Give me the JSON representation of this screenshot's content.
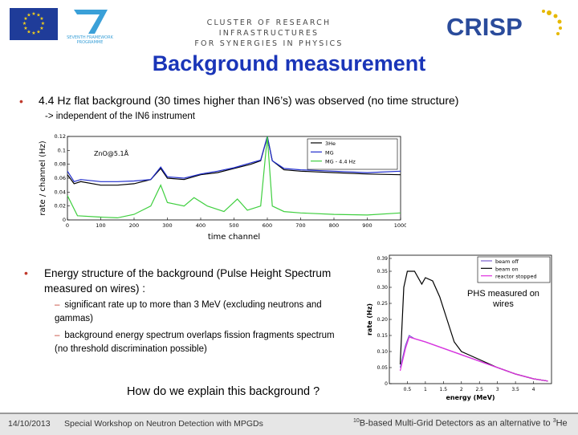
{
  "header": {
    "cluster_line1": "CLUSTER OF RESEARCH INFRASTRUCTURES",
    "cluster_line2": "FOR SYNERGIES IN PHYSICS",
    "crisp": "CRISP",
    "fp7_text1": "SEVENTH FRAMEWORK",
    "fp7_text2": "PROGRAMME"
  },
  "title": "Background measurement",
  "bullet1": {
    "text": "4.4 Hz flat background (30 times higher than IN6’s) was observed (no time structure)",
    "subtext": "-> independent of the IN6 instrument"
  },
  "bullet2": {
    "text": "Energy structure of the background (Pulse Height Spectrum measured on wires) :",
    "sub1": "significant rate up to more than 3 MeV (excluding neutrons and gammas)",
    "sub2": "background energy spectrum overlaps fission fragments spectrum (no threshold discrimination possible)"
  },
  "question": "How do we explain this background ?",
  "phs_note": "PHS measured on wires",
  "footer": {
    "date": "14/10/2013",
    "workshop": "Special Workshop on Neutron Detection with MPGDs",
    "sup1": "10",
    "right_main": "B-based Multi-Grid Detectors as an alternative to ",
    "sup2": "3",
    "right_end": "He"
  },
  "chart_data": [
    {
      "type": "line",
      "annotation": "ZnO@5.1Å",
      "xlabel": "time channel",
      "ylabel": "rate / channel (Hz)",
      "xlim": [
        0,
        1000
      ],
      "ylim": [
        0,
        0.12
      ],
      "x_ticks": [
        "0",
        "100",
        "200",
        "300",
        "400",
        "500",
        "600",
        "700",
        "800",
        "900",
        "1000"
      ],
      "y_ticks": [
        "0",
        "0.02",
        "0.04",
        "0.06",
        "0.08",
        "0.1",
        "0.12"
      ],
      "legend_placement": "top-right",
      "series": [
        {
          "name": "3He",
          "color": "#000000",
          "values": [
            [
              0,
              0.065
            ],
            [
              20,
              0.052
            ],
            [
              40,
              0.055
            ],
            [
              100,
              0.05
            ],
            [
              150,
              0.05
            ],
            [
              200,
              0.052
            ],
            [
              250,
              0.058
            ],
            [
              280,
              0.074
            ],
            [
              300,
              0.06
            ],
            [
              350,
              0.058
            ],
            [
              400,
              0.065
            ],
            [
              450,
              0.068
            ],
            [
              500,
              0.074
            ],
            [
              550,
              0.08
            ],
            [
              580,
              0.085
            ],
            [
              600,
              0.12
            ],
            [
              615,
              0.085
            ],
            [
              650,
              0.072
            ],
            [
              700,
              0.07
            ],
            [
              800,
              0.068
            ],
            [
              900,
              0.066
            ],
            [
              1000,
              0.065
            ]
          ]
        },
        {
          "name": "MG",
          "color": "#1f2ccc",
          "values": [
            [
              0,
              0.07
            ],
            [
              20,
              0.055
            ],
            [
              40,
              0.058
            ],
            [
              100,
              0.055
            ],
            [
              150,
              0.055
            ],
            [
              200,
              0.056
            ],
            [
              250,
              0.058
            ],
            [
              280,
              0.076
            ],
            [
              300,
              0.062
            ],
            [
              350,
              0.06
            ],
            [
              400,
              0.066
            ],
            [
              450,
              0.07
            ],
            [
              500,
              0.075
            ],
            [
              550,
              0.082
            ],
            [
              580,
              0.086
            ],
            [
              600,
              0.12
            ],
            [
              615,
              0.085
            ],
            [
              650,
              0.074
            ],
            [
              700,
              0.072
            ],
            [
              800,
              0.07
            ],
            [
              900,
              0.068
            ],
            [
              1000,
              0.07
            ]
          ]
        },
        {
          "name": "MG - 4.4 Hz",
          "color": "#3fcf3f",
          "values": [
            [
              0,
              0.035
            ],
            [
              30,
              0.006
            ],
            [
              100,
              0.004
            ],
            [
              150,
              0.003
            ],
            [
              200,
              0.008
            ],
            [
              250,
              0.02
            ],
            [
              280,
              0.05
            ],
            [
              300,
              0.025
            ],
            [
              350,
              0.02
            ],
            [
              380,
              0.032
            ],
            [
              420,
              0.02
            ],
            [
              470,
              0.012
            ],
            [
              510,
              0.03
            ],
            [
              540,
              0.014
            ],
            [
              580,
              0.02
            ],
            [
              600,
              0.12
            ],
            [
              615,
              0.02
            ],
            [
              650,
              0.012
            ],
            [
              700,
              0.01
            ],
            [
              800,
              0.008
            ],
            [
              900,
              0.007
            ],
            [
              1000,
              0.01
            ]
          ]
        }
      ]
    },
    {
      "type": "line",
      "xlabel": "energy (MeV)",
      "ylabel": "rate (Hz)",
      "xlim": [
        0,
        4.5
      ],
      "ylim": [
        0,
        0.4
      ],
      "x_ticks": [
        "0.5",
        "1",
        "1.5",
        "2",
        "2.5",
        "3",
        "3.5",
        "4"
      ],
      "y_ticks": [
        "0",
        "0.05",
        "0.10",
        "0.15",
        "0.20",
        "0.25",
        "0.30",
        "0.35",
        "0.39"
      ],
      "legend_placement": "top-right",
      "series": [
        {
          "name": "beam off",
          "color": "#7a5fcf",
          "values": [
            [
              0.3,
              0.05
            ],
            [
              0.45,
              0.12
            ],
            [
              0.55,
              0.15
            ],
            [
              0.7,
              0.14
            ],
            [
              1.0,
              0.13
            ],
            [
              1.5,
              0.11
            ],
            [
              2.0,
              0.09
            ],
            [
              2.5,
              0.07
            ],
            [
              3.0,
              0.05
            ],
            [
              3.5,
              0.03
            ],
            [
              4.0,
              0.015
            ],
            [
              4.4,
              0.008
            ]
          ]
        },
        {
          "name": "beam on",
          "color": "#000000",
          "values": [
            [
              0.3,
              0.06
            ],
            [
              0.4,
              0.3
            ],
            [
              0.5,
              0.35
            ],
            [
              0.7,
              0.35
            ],
            [
              0.9,
              0.31
            ],
            [
              1.0,
              0.33
            ],
            [
              1.2,
              0.32
            ],
            [
              1.4,
              0.27
            ],
            [
              1.6,
              0.2
            ],
            [
              1.8,
              0.13
            ],
            [
              2.0,
              0.1
            ],
            [
              2.5,
              0.075
            ],
            [
              3.0,
              0.05
            ],
            [
              3.5,
              0.03
            ],
            [
              4.0,
              0.015
            ],
            [
              4.4,
              0.008
            ]
          ]
        },
        {
          "name": "reactor stopped",
          "color": "#e030e0",
          "values": [
            [
              0.3,
              0.04
            ],
            [
              0.45,
              0.11
            ],
            [
              0.55,
              0.145
            ],
            [
              0.7,
              0.14
            ],
            [
              1.0,
              0.13
            ],
            [
              1.5,
              0.11
            ],
            [
              2.0,
              0.09
            ],
            [
              2.5,
              0.07
            ],
            [
              3.0,
              0.05
            ],
            [
              3.5,
              0.03
            ],
            [
              4.0,
              0.015
            ],
            [
              4.4,
              0.008
            ]
          ]
        }
      ]
    }
  ]
}
